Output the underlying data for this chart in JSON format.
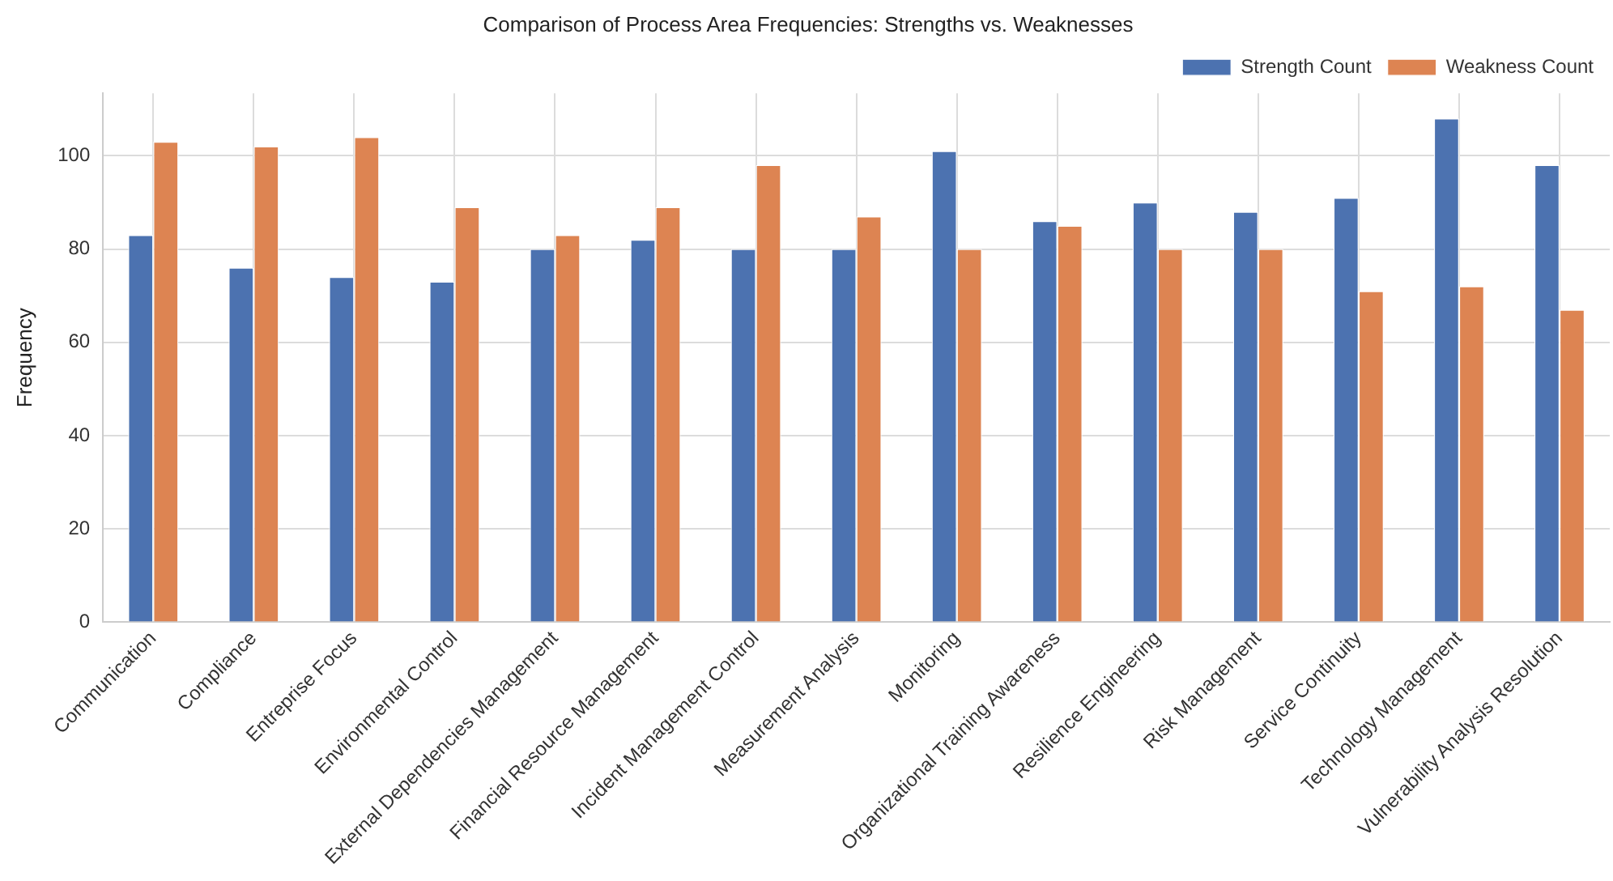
{
  "chart_data": {
    "type": "bar",
    "title": "Comparison of Process Area Frequencies: Strengths vs. Weaknesses",
    "ylabel": "Frequency",
    "categories": [
      "Communication",
      "Compliance",
      "Entreprise Focus",
      "Environmental Control",
      "External Dependencies Management",
      "Financial Resource Management",
      "Incident Management Control",
      "Measurement Analysis",
      "Monitoring",
      "Organizational Training Awareness",
      "Resilience Engineering",
      "Risk Management",
      "Service Continuity",
      "Technology Management",
      "Vulnerability Analysis Resolution"
    ],
    "series": [
      {
        "name": "Strength Count",
        "color": "#4c72b0",
        "values": [
          83,
          76,
          74,
          73,
          80,
          82,
          80,
          80,
          101,
          86,
          90,
          88,
          91,
          108,
          98
        ]
      },
      {
        "name": "Weakness Count",
        "color": "#dd8452",
        "values": [
          103,
          102,
          104,
          89,
          83,
          89,
          98,
          87,
          80,
          85,
          80,
          80,
          71,
          72,
          67
        ]
      }
    ],
    "ylim": [
      0,
      113.4
    ],
    "yticks": [
      0,
      20,
      40,
      60,
      80,
      100
    ],
    "grid": true,
    "legend": "top right"
  }
}
